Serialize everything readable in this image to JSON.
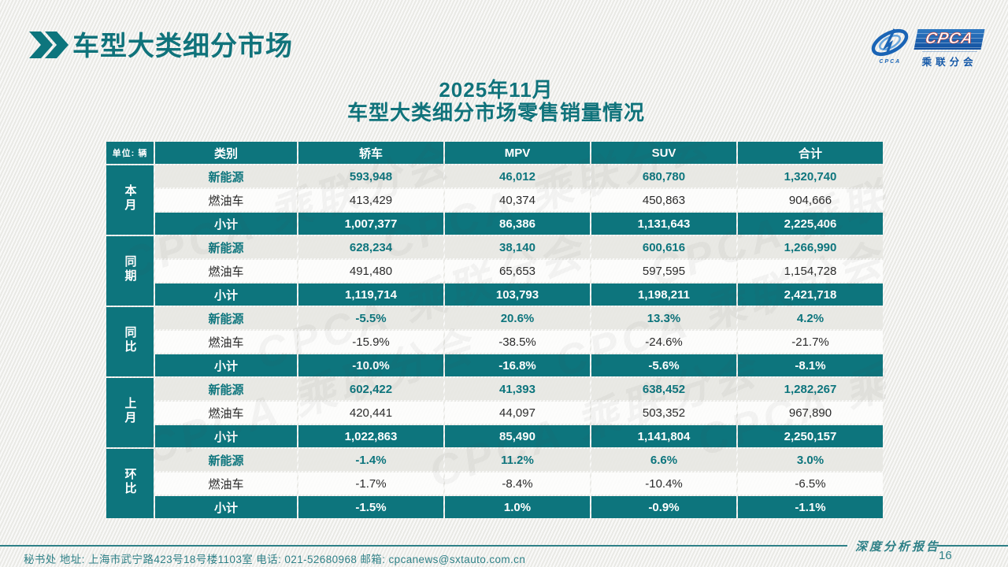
{
  "header": {
    "title": "车型大类细分市场"
  },
  "logo": {
    "icon_caption": "CPCA",
    "badge": "CPCA",
    "subtitle": "乘联分会"
  },
  "subtitle": {
    "line1": "2025年11月",
    "line2": "车型大类细分市场零售销量情况"
  },
  "watermark": "CPCA 乘联分会",
  "colors": {
    "teal": "#0d757d",
    "title_teal": "#10737b",
    "footer_teal": "#2e8087",
    "logo_blue": "#1559a8",
    "row_gray": "#e7e7e3",
    "row_white": "#fdfdfc"
  },
  "table": {
    "unit_label": "单位: 辆",
    "columns": [
      "类别",
      "轿车",
      "MPV",
      "SUV",
      "合计"
    ],
    "groups": [
      {
        "label": "本月",
        "rows": [
          {
            "label": "新能源",
            "values": [
              "593,948",
              "46,012",
              "680,780",
              "1,320,740"
            ]
          },
          {
            "label": "燃油车",
            "values": [
              "413,429",
              "40,374",
              "450,863",
              "904,666"
            ]
          },
          {
            "label": "小计",
            "values": [
              "1,007,377",
              "86,386",
              "1,131,643",
              "2,225,406"
            ]
          }
        ]
      },
      {
        "label": "同期",
        "rows": [
          {
            "label": "新能源",
            "values": [
              "628,234",
              "38,140",
              "600,616",
              "1,266,990"
            ]
          },
          {
            "label": "燃油车",
            "values": [
              "491,480",
              "65,653",
              "597,595",
              "1,154,728"
            ]
          },
          {
            "label": "小计",
            "values": [
              "1,119,714",
              "103,793",
              "1,198,211",
              "2,421,718"
            ]
          }
        ]
      },
      {
        "label": "同比",
        "rows": [
          {
            "label": "新能源",
            "values": [
              "-5.5%",
              "20.6%",
              "13.3%",
              "4.2%"
            ]
          },
          {
            "label": "燃油车",
            "values": [
              "-15.9%",
              "-38.5%",
              "-24.6%",
              "-21.7%"
            ]
          },
          {
            "label": "小计",
            "values": [
              "-10.0%",
              "-16.8%",
              "-5.6%",
              "-8.1%"
            ]
          }
        ]
      },
      {
        "label": "上月",
        "rows": [
          {
            "label": "新能源",
            "values": [
              "602,422",
              "41,393",
              "638,452",
              "1,282,267"
            ]
          },
          {
            "label": "燃油车",
            "values": [
              "420,441",
              "44,097",
              "503,352",
              "967,890"
            ]
          },
          {
            "label": "小计",
            "values": [
              "1,022,863",
              "85,490",
              "1,141,804",
              "2,250,157"
            ]
          }
        ]
      },
      {
        "label": "环比",
        "rows": [
          {
            "label": "新能源",
            "values": [
              "-1.4%",
              "11.2%",
              "6.6%",
              "3.0%"
            ]
          },
          {
            "label": "燃油车",
            "values": [
              "-1.7%",
              "-8.4%",
              "-10.4%",
              "-6.5%"
            ]
          },
          {
            "label": "小计",
            "values": [
              "-1.5%",
              "1.0%",
              "-0.9%",
              "-1.1%"
            ]
          }
        ]
      }
    ]
  },
  "footer": {
    "contact": "秘书处   地址: 上海市武宁路423号18号楼1103室  电话: 021-52680968   邮箱: cpcanews@sxtauto.com.cn",
    "report_label": "深度分析报告",
    "page_number": "16"
  }
}
